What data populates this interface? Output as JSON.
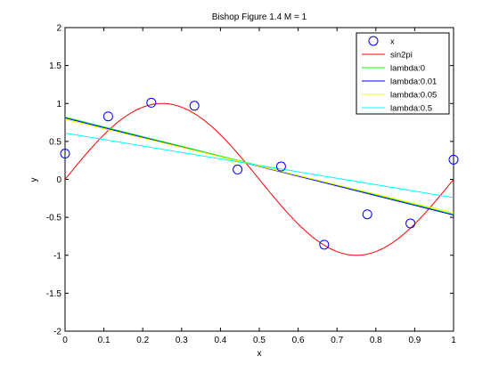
{
  "chart_data": {
    "type": "line",
    "title": "Bishop Figure 1.4 M = 1",
    "xlabel": "x",
    "ylabel": "y",
    "xlim": [
      0,
      1
    ],
    "ylim": [
      -2,
      2
    ],
    "x_ticks": [
      0,
      0.1,
      0.2,
      0.3,
      0.4,
      0.5,
      0.6,
      0.7,
      0.8,
      0.9,
      1
    ],
    "x_tick_labels": [
      "0",
      "0.1",
      "0.2",
      "0.3",
      "0.4",
      "0.5",
      "0.6",
      "0.7",
      "0.8",
      "0.9",
      "1"
    ],
    "y_ticks": [
      -2,
      -1.5,
      -1,
      -0.5,
      0,
      0.5,
      1,
      1.5,
      2
    ],
    "y_tick_labels": [
      "-2",
      "-1.5",
      "-1",
      "-0.5",
      "0",
      "0.5",
      "1",
      "1.5",
      "2"
    ],
    "grid": false,
    "legend_position": "top-right",
    "scatter": {
      "name": "x",
      "color": "#0000ff",
      "x": [
        0,
        0.111,
        0.222,
        0.333,
        0.444,
        0.556,
        0.667,
        0.778,
        0.889,
        1.0
      ],
      "y": [
        0.34,
        0.83,
        1.01,
        0.97,
        0.13,
        0.17,
        -0.86,
        -0.46,
        -0.58,
        0.26
      ]
    },
    "curve": {
      "name": "sin2pi",
      "color": "#ff0000",
      "function": "sin(2*pi*x)"
    },
    "series": [
      {
        "name": "lambda:0",
        "color": "#00ff00",
        "x": [
          0,
          1
        ],
        "y": [
          0.82,
          -0.46
        ]
      },
      {
        "name": "lambda:0.01",
        "color": "#0000ff",
        "x": [
          0,
          1
        ],
        "y": [
          0.81,
          -0.47
        ]
      },
      {
        "name": "lambda:0.05",
        "color": "#ffff00",
        "x": [
          0,
          1
        ],
        "y": [
          0.79,
          -0.44
        ]
      },
      {
        "name": "lambda:0.5",
        "color": "#00ffff",
        "x": [
          0,
          1
        ],
        "y": [
          0.61,
          -0.24
        ]
      }
    ]
  }
}
